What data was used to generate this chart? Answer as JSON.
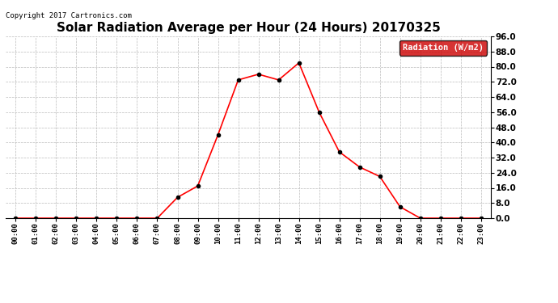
{
  "title": "Solar Radiation Average per Hour (24 Hours) 20170325",
  "copyright_text": "Copyright 2017 Cartronics.com",
  "legend_label": "Radiation (W/m2)",
  "hours": [
    "00:00",
    "01:00",
    "02:00",
    "03:00",
    "04:00",
    "05:00",
    "06:00",
    "07:00",
    "08:00",
    "09:00",
    "10:00",
    "11:00",
    "12:00",
    "13:00",
    "14:00",
    "15:00",
    "16:00",
    "17:00",
    "18:00",
    "19:00",
    "20:00",
    "21:00",
    "22:00",
    "23:00"
  ],
  "values": [
    0.0,
    0.0,
    0.0,
    0.0,
    0.0,
    0.0,
    0.0,
    0.0,
    11.0,
    17.0,
    44.0,
    73.0,
    76.0,
    73.0,
    82.0,
    56.0,
    35.0,
    27.0,
    22.0,
    6.0,
    0.0,
    0.0,
    0.0,
    0.0
  ],
  "line_color": "red",
  "marker_color": "black",
  "ylim": [
    0.0,
    96.0
  ],
  "yticks": [
    0.0,
    8.0,
    16.0,
    24.0,
    32.0,
    40.0,
    48.0,
    56.0,
    64.0,
    72.0,
    80.0,
    88.0,
    96.0
  ],
  "background_color": "#ffffff",
  "grid_color": "#bbbbbb",
  "title_fontsize": 11,
  "legend_bg_color": "#cc0000",
  "legend_text_color": "#ffffff"
}
